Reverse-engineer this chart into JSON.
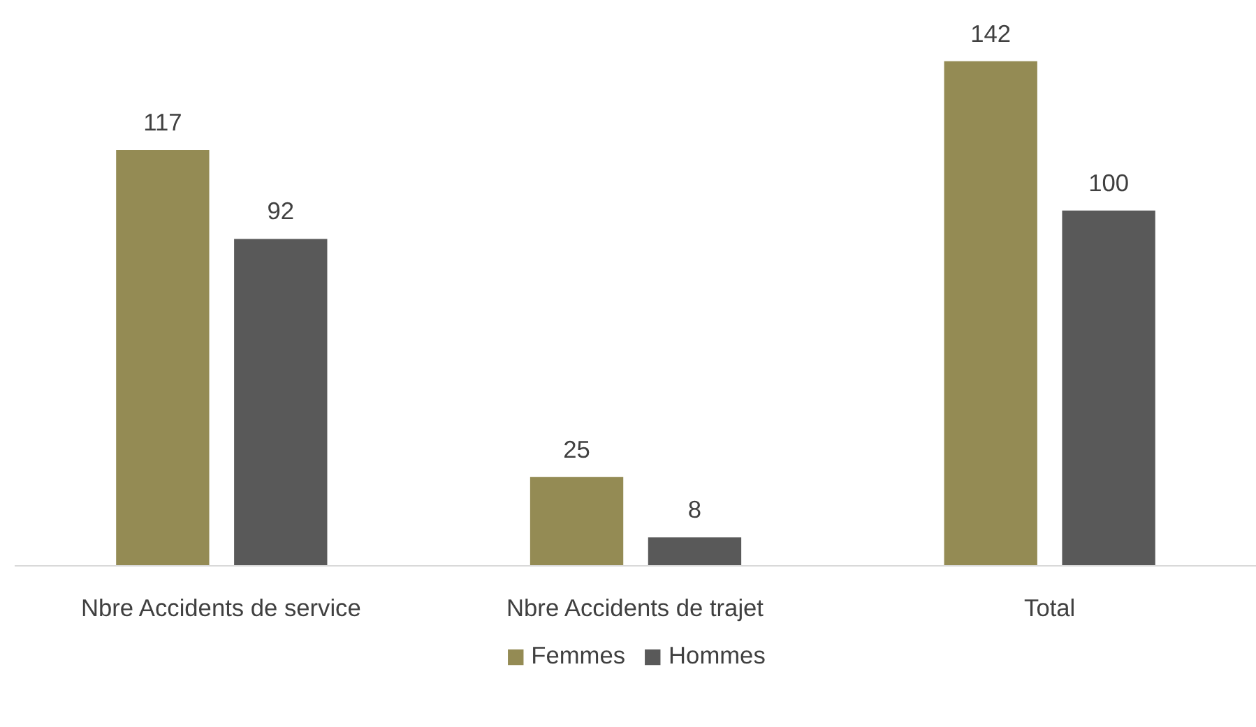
{
  "chart_data": {
    "type": "bar",
    "categories": [
      "Nbre Accidents de service",
      "Nbre Accidents de trajet",
      "Total"
    ],
    "series": [
      {
        "name": "Femmes",
        "color": "#948b54",
        "values": [
          117,
          25,
          142
        ]
      },
      {
        "name": "Hommes",
        "color": "#595959",
        "values": [
          92,
          8,
          100
        ]
      }
    ],
    "data_labels": true,
    "legend": "bottom",
    "grid": false
  }
}
